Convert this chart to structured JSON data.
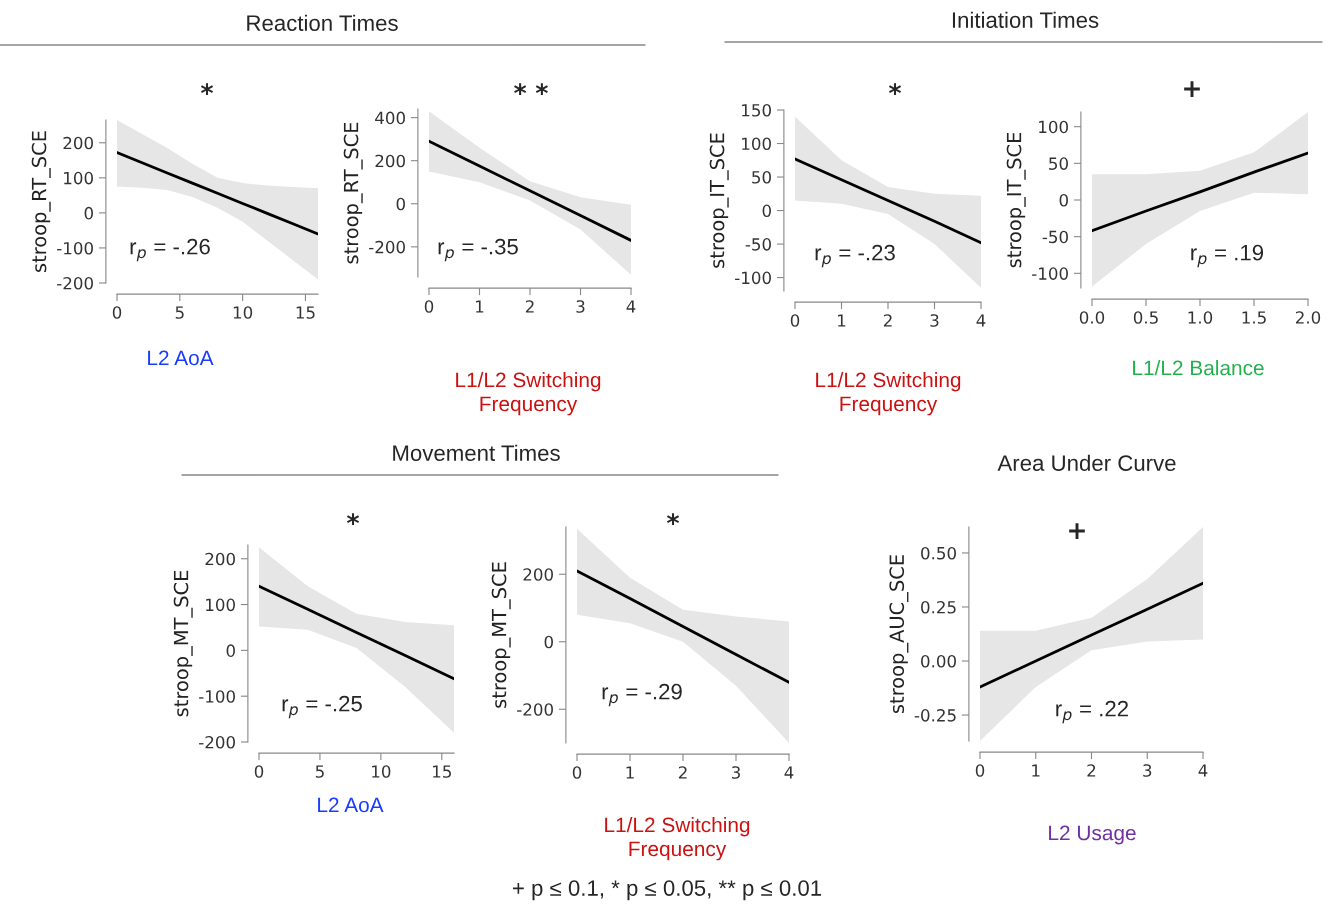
{
  "chart_data": [
    {
      "type": "line",
      "title": "Reaction Times",
      "subtitle": "*",
      "xlabel": "L2 AoA",
      "ylabel": "stroop_RT_SCE",
      "x": [
        0,
        2,
        4,
        6,
        8,
        10,
        12,
        14,
        16
      ],
      "xlim": [
        0,
        16
      ],
      "xticks": [
        0,
        5,
        10,
        15
      ],
      "ylim": [
        -200,
        265
      ],
      "yticks": [
        -200,
        -100,
        0,
        100,
        200
      ],
      "annotations": [
        "r$_{p}$ = -.26"
      ],
      "series": [
        {
          "color": "#000000",
          "values": [
            172,
            143,
            114,
            85,
            56,
            27,
            -2,
            -31,
            -60
          ],
          "lower": [
            75,
            72,
            65,
            45,
            15,
            -25,
            -80,
            -135,
            -190
          ],
          "upper": [
            265,
            225,
            185,
            140,
            100,
            85,
            78,
            74,
            70
          ]
        }
      ]
    },
    {
      "type": "line",
      "subtitle": "* *",
      "xlabel": "L1/L2 Switching Frequency",
      "ylabel": "stroop_RT_SCE",
      "x": [
        0,
        1,
        2,
        3,
        4
      ],
      "xlim": [
        0,
        4
      ],
      "xticks": [
        0,
        1,
        2,
        3,
        4
      ],
      "ylim": [
        -340,
        440
      ],
      "yticks": [
        -200,
        0,
        200,
        400
      ],
      "annotations": [
        "r$_{p}$ = -.35"
      ],
      "series": [
        {
          "color": "#000000",
          "values": [
            290,
            175,
            60,
            -55,
            -170
          ],
          "lower": [
            150,
            100,
            15,
            -120,
            -330
          ],
          "upper": [
            430,
            260,
            105,
            30,
            -5
          ]
        }
      ]
    },
    {
      "type": "line",
      "title": "Initiation Times",
      "subtitle": "*",
      "xlabel": "L1/L2 Switching Frequency",
      "ylabel": "stroop_IT_SCE",
      "x": [
        0,
        1,
        2,
        3,
        4
      ],
      "xlim": [
        0,
        4
      ],
      "xticks": [
        0,
        1,
        2,
        3,
        4
      ],
      "ylim": [
        -120,
        150
      ],
      "yticks": [
        -100,
        -50,
        0,
        50,
        100,
        150
      ],
      "annotations": [
        "r$_{p}$ = -.23"
      ],
      "series": [
        {
          "color": "#000000",
          "values": [
            77,
            46,
            15,
            -16,
            -48
          ],
          "lower": [
            15,
            10,
            -5,
            -50,
            -115
          ],
          "upper": [
            140,
            75,
            35,
            25,
            22
          ]
        }
      ]
    },
    {
      "type": "line",
      "subtitle": "+",
      "xlabel": "L1/L2 Balance",
      "ylabel": "stroop_IT_SCE",
      "x": [
        0,
        0.5,
        1,
        1.5,
        2
      ],
      "xlim": [
        0,
        2
      ],
      "xticks": [
        {
          "value": 0,
          "label": "0.0"
        },
        0.5,
        {
          "value": 1,
          "label": "1.0"
        },
        1.5,
        {
          "value": 2,
          "label": "2.0"
        }
      ],
      "ylim": [
        -120,
        120
      ],
      "yticks": [
        -100,
        -50,
        0,
        50,
        100
      ],
      "annotations": [
        "r$_{p}$ = .19"
      ],
      "series": [
        {
          "color": "#000000",
          "values": [
            -42,
            -15,
            11,
            38,
            64
          ],
          "lower": [
            -118,
            -60,
            -15,
            10,
            8
          ],
          "upper": [
            35,
            35,
            40,
            65,
            120
          ]
        }
      ]
    },
    {
      "type": "line",
      "title": "Movement Times",
      "subtitle": "*",
      "xlabel": "L2 AoA",
      "ylabel": "stroop_MT_SCE",
      "x": [
        0,
        4,
        8,
        12,
        16
      ],
      "xlim": [
        0,
        16
      ],
      "xticks": [
        0,
        5,
        10,
        15
      ],
      "ylim": [
        -200,
        230
      ],
      "yticks": [
        -200,
        -100,
        0,
        100,
        200
      ],
      "annotations": [
        "r$_{p}$ = -.25"
      ],
      "series": [
        {
          "color": "#000000",
          "values": [
            140,
            90,
            39,
            -11,
            -62
          ],
          "lower": [
            52,
            45,
            5,
            -80,
            -180
          ],
          "upper": [
            225,
            140,
            80,
            62,
            55
          ]
        }
      ]
    },
    {
      "type": "line",
      "subtitle": "*",
      "xlabel": "L1/L2 Switching Frequency",
      "ylabel": "stroop_MT_SCE",
      "x": [
        0,
        1,
        2,
        3,
        4
      ],
      "xlim": [
        0,
        4
      ],
      "xticks": [
        0,
        1,
        2,
        3,
        4
      ],
      "ylim": [
        -300,
        340
      ],
      "yticks": [
        -200,
        0,
        200
      ],
      "annotations": [
        "r$_{p}$ = -.29"
      ],
      "series": [
        {
          "color": "#000000",
          "values": [
            210,
            128,
            45,
            -38,
            -120
          ],
          "lower": [
            80,
            55,
            0,
            -130,
            -300
          ],
          "upper": [
            335,
            190,
            95,
            75,
            60
          ]
        }
      ]
    },
    {
      "type": "line",
      "title": "Area Under Curve",
      "subtitle": "+",
      "xlabel": "L2 Usage",
      "ylabel": "stroop_AUC_SCE",
      "x": [
        0,
        1,
        2,
        3,
        4
      ],
      "xlim": [
        0,
        4
      ],
      "xticks": [
        0,
        1,
        2,
        3,
        4
      ],
      "ylim": [
        -0.37,
        0.62
      ],
      "yticks": [
        {
          "value": -0.25,
          "label": "-0.25"
        },
        {
          "value": 0,
          "label": "0.00"
        },
        {
          "value": 0.25,
          "label": "0.25"
        },
        {
          "value": 0.5,
          "label": "0.50"
        }
      ],
      "annotations": [
        "r$_{p}$ = .22",
        "+ p ≤ 0.1, * p ≤ 0.05, ** p ≤ 0.01"
      ],
      "series": [
        {
          "color": "#000000",
          "values": [
            -0.12,
            0,
            0.12,
            0.24,
            0.36
          ],
          "lower": [
            -0.37,
            -0.12,
            0.05,
            0.09,
            0.1
          ],
          "upper": [
            0.14,
            0.14,
            0.2,
            0.38,
            0.62
          ]
        }
      ]
    }
  ]
}
